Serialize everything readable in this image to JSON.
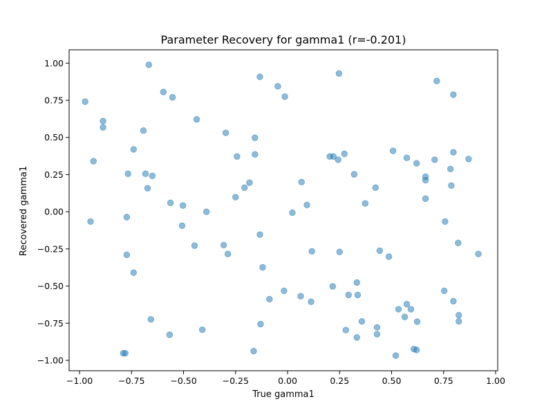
{
  "chart_data": {
    "type": "scatter",
    "title": "Parameter Recovery for gamma1 (r=-0.201)",
    "xlabel": "True gamma1",
    "ylabel": "Recovered gamma1",
    "xlim": [
      -1.05,
      1.01
    ],
    "ylim": [
      -1.07,
      1.09
    ],
    "xticks": [
      -1.0,
      -0.75,
      -0.5,
      -0.25,
      0.0,
      0.25,
      0.5,
      0.75,
      1.0
    ],
    "xtick_labels": [
      "−1.00",
      "−0.75",
      "−0.50",
      "−0.25",
      "0.00",
      "0.25",
      "0.50",
      "0.75",
      "1.00"
    ],
    "yticks": [
      -1.0,
      -0.75,
      -0.5,
      -0.25,
      0.0,
      0.25,
      0.5,
      0.75,
      1.0
    ],
    "ytick_labels": [
      "−1.00",
      "−0.75",
      "−0.50",
      "−0.25",
      "0.00",
      "0.25",
      "0.50",
      "0.75",
      "1.00"
    ],
    "grid": false,
    "legend": "none",
    "marker_color": "#1f77b4",
    "marker_opacity": 0.5,
    "points": [
      [
        -0.667,
        0.989
      ],
      [
        -0.133,
        0.908
      ],
      [
        0.247,
        0.931
      ],
      [
        -0.047,
        0.844
      ],
      [
        -0.597,
        0.806
      ],
      [
        -0.553,
        0.77
      ],
      [
        -0.013,
        0.775
      ],
      [
        -0.973,
        0.741
      ],
      [
        0.717,
        0.88
      ],
      [
        0.797,
        0.788
      ],
      [
        -0.887,
        0.61
      ],
      [
        -0.887,
        0.568
      ],
      [
        -0.437,
        0.622
      ],
      [
        -0.693,
        0.546
      ],
      [
        -0.297,
        0.531
      ],
      [
        -0.157,
        0.498
      ],
      [
        -0.74,
        0.42
      ],
      [
        -0.243,
        0.372
      ],
      [
        -0.157,
        0.386
      ],
      [
        -0.933,
        0.34
      ],
      [
        -0.767,
        0.256
      ],
      [
        -0.683,
        0.256
      ],
      [
        -0.65,
        0.242
      ],
      [
        -0.673,
        0.158
      ],
      [
        0.203,
        0.372
      ],
      [
        0.22,
        0.372
      ],
      [
        0.243,
        0.35
      ],
      [
        0.273,
        0.39
      ],
      [
        0.32,
        0.252
      ],
      [
        0.507,
        0.41
      ],
      [
        0.573,
        0.363
      ],
      [
        0.62,
        0.326
      ],
      [
        0.707,
        0.35
      ],
      [
        0.797,
        0.4
      ],
      [
        0.87,
        0.355
      ],
      [
        0.783,
        0.288
      ],
      [
        0.663,
        0.236
      ],
      [
        0.663,
        0.212
      ],
      [
        0.787,
        0.176
      ],
      [
        0.663,
        0.088
      ],
      [
        -0.183,
        0.196
      ],
      [
        -0.207,
        0.162
      ],
      [
        -0.25,
        0.098
      ],
      [
        0.067,
        0.2
      ],
      [
        0.423,
        0.162
      ],
      [
        0.373,
        0.056
      ],
      [
        -0.563,
        0.06
      ],
      [
        -0.503,
        0.042
      ],
      [
        -0.39,
        0.0
      ],
      [
        0.093,
        0.046
      ],
      [
        0.023,
        -0.006
      ],
      [
        -0.947,
        -0.066
      ],
      [
        -0.773,
        -0.036
      ],
      [
        -0.507,
        -0.094
      ],
      [
        0.757,
        -0.066
      ],
      [
        -0.133,
        -0.154
      ],
      [
        -0.447,
        -0.228
      ],
      [
        -0.307,
        -0.224
      ],
      [
        -0.287,
        -0.284
      ],
      [
        0.117,
        -0.266
      ],
      [
        0.25,
        -0.27
      ],
      [
        0.443,
        -0.262
      ],
      [
        0.487,
        -0.302
      ],
      [
        0.82,
        -0.21
      ],
      [
        0.917,
        -0.284
      ],
      [
        -0.773,
        -0.29
      ],
      [
        -0.74,
        -0.41
      ],
      [
        -0.12,
        -0.374
      ],
      [
        0.333,
        -0.476
      ],
      [
        0.217,
        -0.502
      ],
      [
        -0.017,
        -0.532
      ],
      [
        -0.087,
        -0.588
      ],
      [
        0.063,
        -0.568
      ],
      [
        0.113,
        -0.606
      ],
      [
        0.293,
        -0.56
      ],
      [
        0.337,
        -0.56
      ],
      [
        0.753,
        -0.532
      ],
      [
        0.797,
        -0.602
      ],
      [
        0.573,
        -0.622
      ],
      [
        0.533,
        -0.656
      ],
      [
        0.593,
        -0.656
      ],
      [
        0.563,
        -0.708
      ],
      [
        0.623,
        -0.74
      ],
      [
        0.823,
        -0.696
      ],
      [
        0.823,
        -0.738
      ],
      [
        -0.657,
        -0.724
      ],
      [
        -0.13,
        -0.756
      ],
      [
        0.357,
        -0.738
      ],
      [
        0.43,
        -0.778
      ],
      [
        0.28,
        -0.796
      ],
      [
        -0.41,
        -0.794
      ],
      [
        -0.567,
        -0.828
      ],
      [
        0.43,
        -0.824
      ],
      [
        0.333,
        -0.846
      ],
      [
        0.607,
        -0.924
      ],
      [
        0.62,
        -0.93
      ],
      [
        -0.79,
        -0.952
      ],
      [
        -0.78,
        -0.952
      ],
      [
        -0.163,
        -0.938
      ],
      [
        0.52,
        -0.968
      ]
    ]
  }
}
